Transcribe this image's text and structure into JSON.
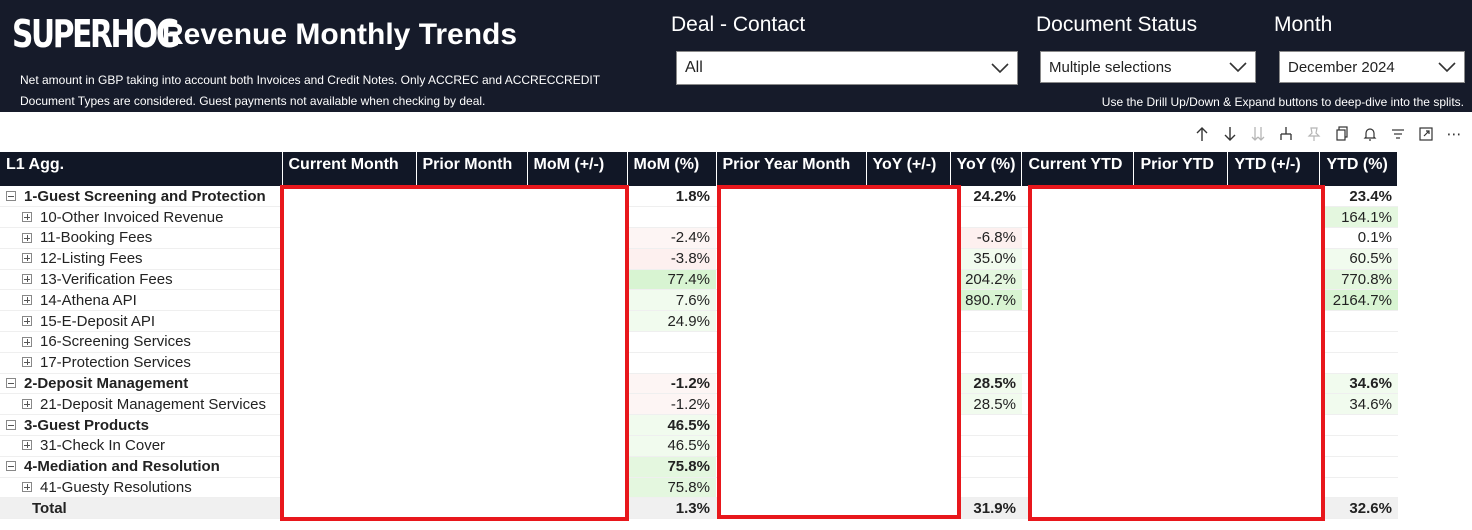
{
  "header": {
    "logo_text": "SUPERHOG",
    "title": "Revenue Monthly Trends",
    "subtitle": "Net amount in GBP taking into account both Invoices and Credit Notes. Only ACCREC and ACCRECCREDIT Document Types are considered. Guest payments not available when checking by deal.",
    "drill_hint": "Use the Drill Up/Down & Expand buttons to deep-dive into the splits."
  },
  "slicers": {
    "deal": {
      "label": "Deal - Contact",
      "value": "All"
    },
    "status": {
      "label": "Document Status",
      "value": "Multiple selections"
    },
    "month": {
      "label": "Month",
      "value": "December 2024"
    }
  },
  "toolbar": {
    "icons": [
      "drill-up-icon",
      "drill-down-icon",
      "expand-all-icon",
      "expand-next-level-icon",
      "pin-icon",
      "copy-icon",
      "alert-icon",
      "filter-icon",
      "focus-mode-icon",
      "more-options-icon"
    ]
  },
  "table": {
    "columns": [
      "L1 Agg.",
      "Current Month",
      "Prior Month",
      "MoM (+/-)",
      "MoM (%)",
      "Prior Year Month",
      "YoY (+/-)",
      "YoY (%)",
      "Current YTD",
      "Prior YTD",
      "YTD (+/-)",
      "YTD (%)"
    ],
    "rows": [
      {
        "label": "1-Guest Screening and Protection",
        "level": 1,
        "mom": "1.8%",
        "yoy": "24.2%",
        "ytd": "23.4%"
      },
      {
        "label": "10-Other Invoiced Revenue",
        "level": 2,
        "mom": "",
        "yoy": "",
        "ytd": "164.1%"
      },
      {
        "label": "11-Booking Fees",
        "level": 2,
        "mom": "-2.4%",
        "yoy": "-6.8%",
        "ytd": "0.1%"
      },
      {
        "label": "12-Listing Fees",
        "level": 2,
        "mom": "-3.8%",
        "yoy": "35.0%",
        "ytd": "60.5%"
      },
      {
        "label": "13-Verification Fees",
        "level": 2,
        "mom": "77.4%",
        "yoy": "204.2%",
        "ytd": "770.8%"
      },
      {
        "label": "14-Athena API",
        "level": 2,
        "mom": "7.6%",
        "yoy": "890.7%",
        "ytd": "2164.7%"
      },
      {
        "label": "15-E-Deposit API",
        "level": 2,
        "mom": "24.9%",
        "yoy": "",
        "ytd": ""
      },
      {
        "label": "16-Screening Services",
        "level": 2,
        "mom": "",
        "yoy": "",
        "ytd": ""
      },
      {
        "label": "17-Protection Services",
        "level": 2,
        "mom": "",
        "yoy": "",
        "ytd": ""
      },
      {
        "label": "2-Deposit Management",
        "level": 1,
        "mom": "-1.2%",
        "yoy": "28.5%",
        "ytd": "34.6%"
      },
      {
        "label": "21-Deposit Management Services",
        "level": 2,
        "mom": "-1.2%",
        "yoy": "28.5%",
        "ytd": "34.6%"
      },
      {
        "label": "3-Guest Products",
        "level": 1,
        "mom": "46.5%",
        "yoy": "",
        "ytd": ""
      },
      {
        "label": "31-Check In Cover",
        "level": 2,
        "mom": "46.5%",
        "yoy": "",
        "ytd": ""
      },
      {
        "label": "4-Mediation and Resolution",
        "level": 1,
        "mom": "75.8%",
        "yoy": "",
        "ytd": ""
      },
      {
        "label": "41-Guesty Resolutions",
        "level": 2,
        "mom": "75.8%",
        "yoy": "",
        "ytd": ""
      }
    ],
    "total": {
      "label": "Total",
      "mom": "1.3%",
      "yoy": "31.9%",
      "ytd": "32.6%"
    }
  },
  "colors": {
    "header_bg": "#161b2a",
    "table_header_bg": "#111726",
    "redaction_border": "#e8171c",
    "positive_strong": "#d8f4d2",
    "negative_light": "#fdf0ef"
  }
}
